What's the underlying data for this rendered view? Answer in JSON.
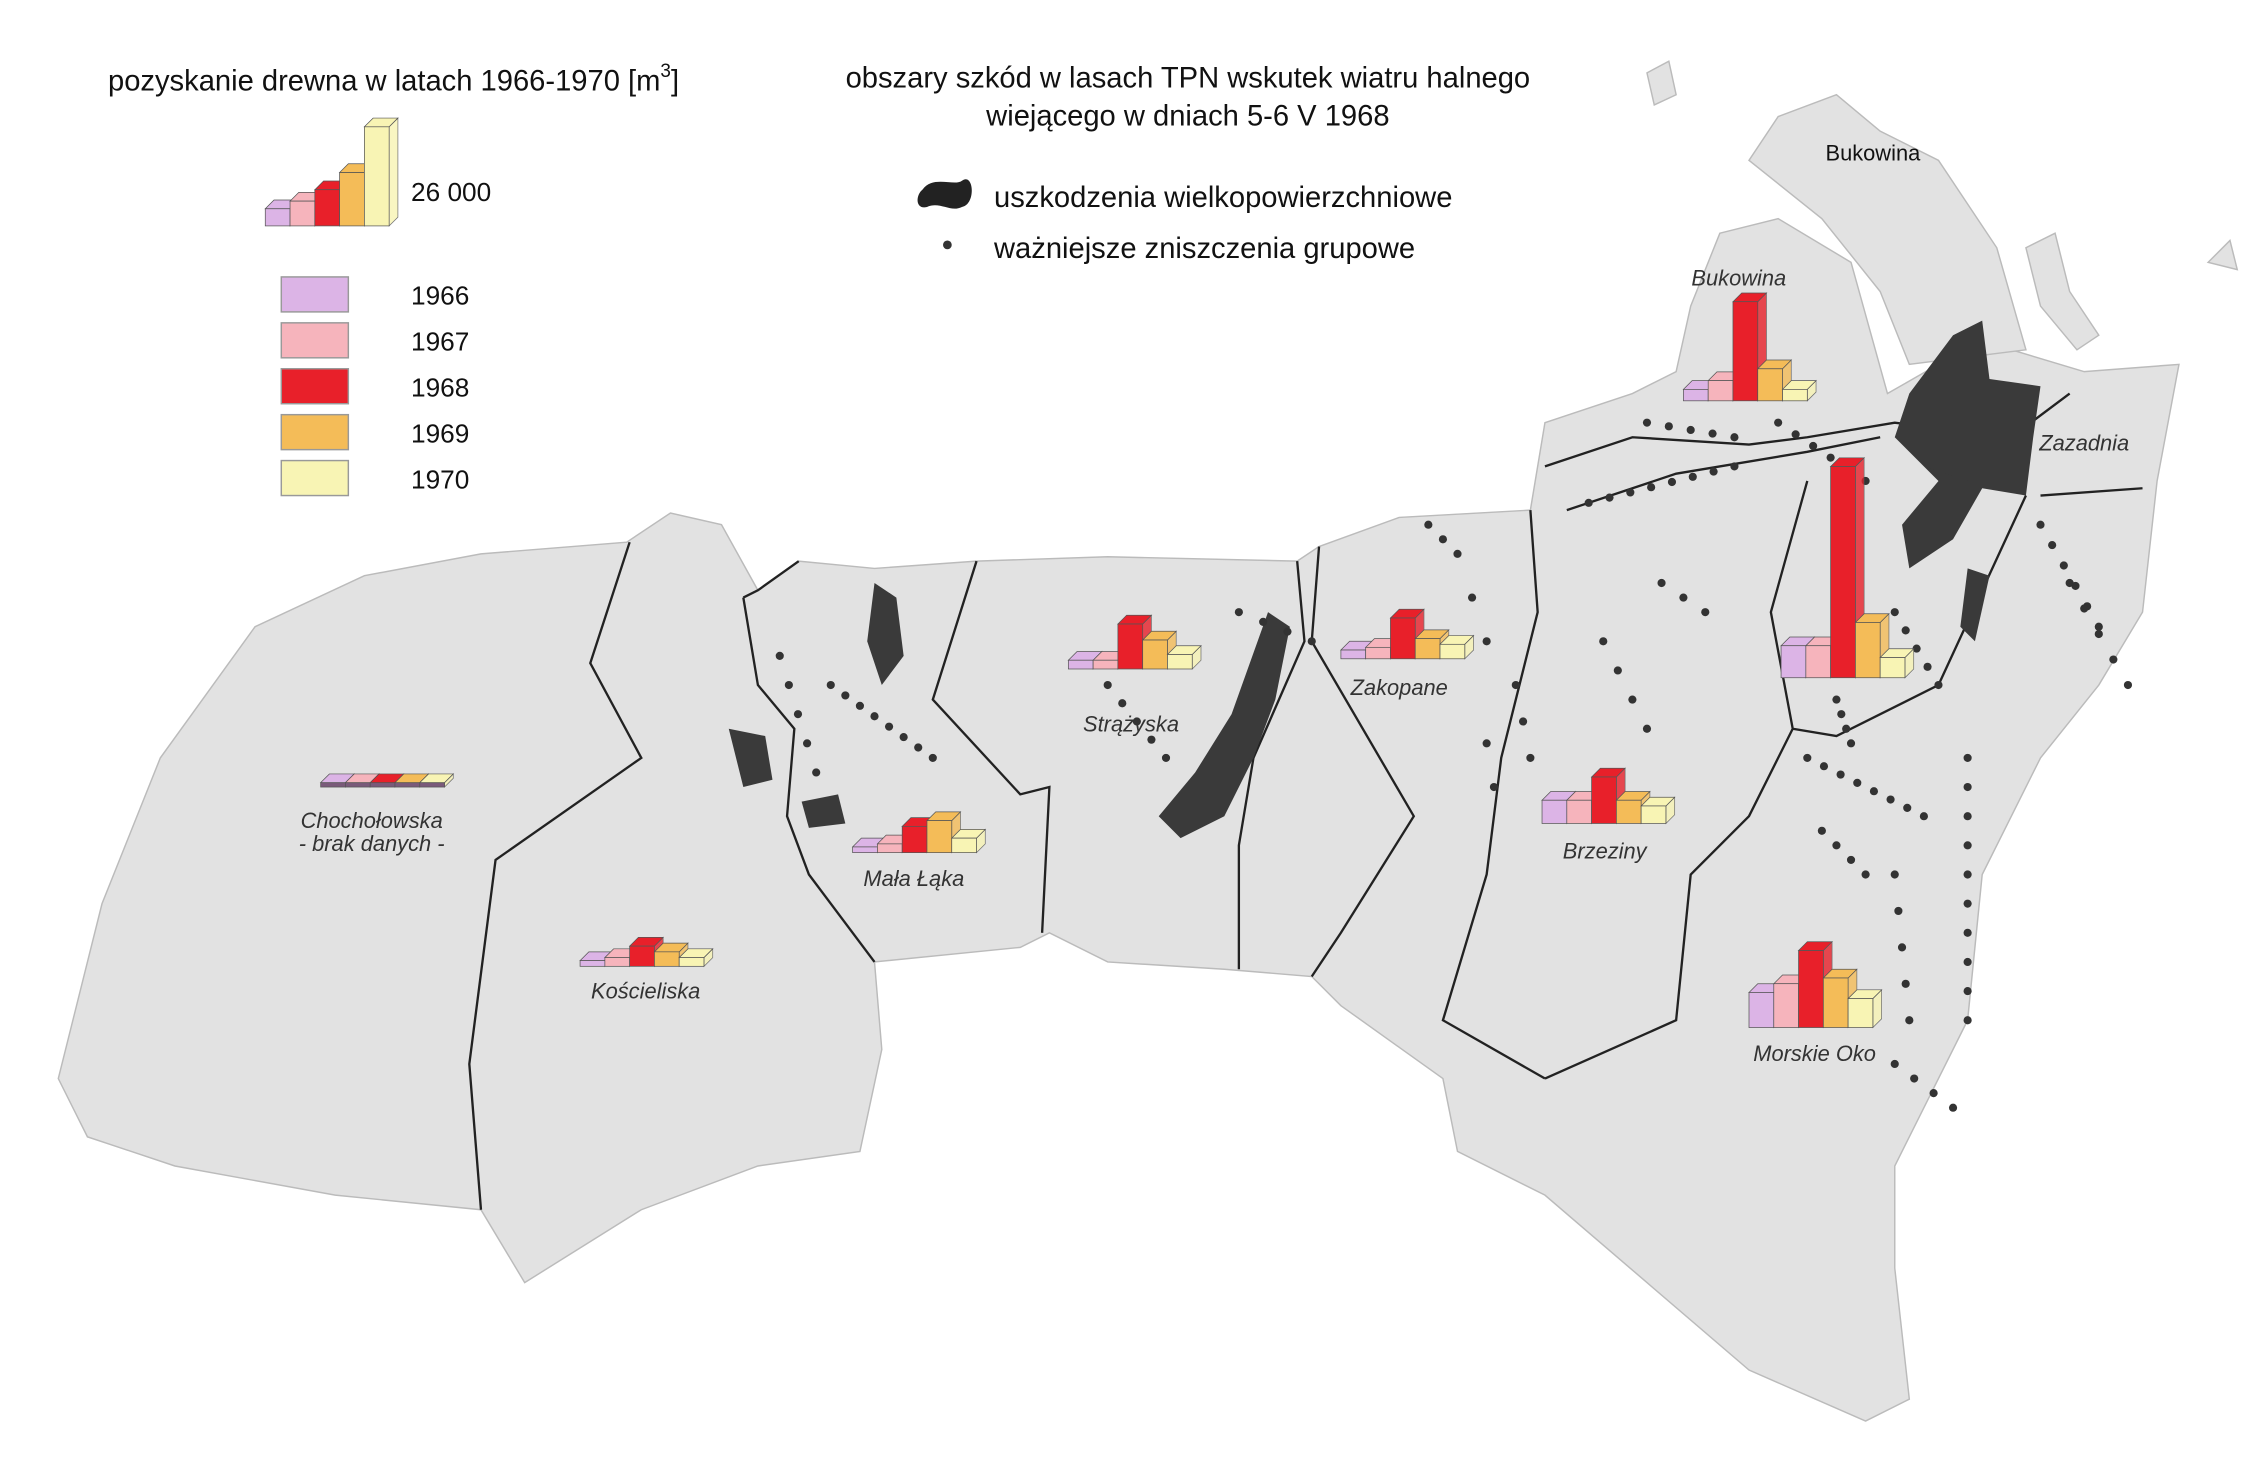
{
  "left_title": {
    "text": "pozyskanie drewna w latach 1966-1970 [m",
    "superscript": "3",
    "close": "]"
  },
  "right_title": [
    "obszary szkód w lasach TPN wskutek wiatru halnego",
    "wiejącego w dniach 5-6 V 1968"
  ],
  "damage_legend": [
    "uszkodzenia wielkopowierzchniowe",
    "ważniejsze zniszczenia grupowe"
  ],
  "scale_bars": {
    "values": [
      4500,
      6500,
      9500,
      14000,
      26000
    ],
    "value_labels": [
      null,
      null,
      null,
      null,
      "26 000"
    ]
  },
  "years": [
    {
      "label": "1966",
      "color": "#dcb4e6"
    },
    {
      "label": "1967",
      "color": "#f6b4bc"
    },
    {
      "label": "1968",
      "color": "#e8202a"
    },
    {
      "label": "1969",
      "color": "#f4bc58"
    },
    {
      "label": "1970",
      "color": "#f8f4b4"
    }
  ],
  "regions": [
    {
      "name": "Chochołowska",
      "note": "- brak danych -",
      "values": [
        null,
        null,
        null,
        null,
        null
      ]
    },
    {
      "name": "Kościeliska",
      "values": [
        1500,
        2300,
        5300,
        3800,
        2300
      ]
    },
    {
      "name": "Mała Łąka",
      "values": [
        1500,
        2300,
        6900,
        8400,
        3800
      ]
    },
    {
      "name": "Strążyska",
      "values": [
        2300,
        2300,
        11800,
        7600,
        3800
      ]
    },
    {
      "name": "Zakopane",
      "values": [
        2300,
        3000,
        10700,
        5300,
        3800
      ]
    },
    {
      "name": "Brzeziny",
      "values": [
        6100,
        6100,
        12200,
        6100,
        4600
      ]
    },
    {
      "name": "Bukowina",
      "values": [
        3000,
        5300,
        26000,
        8400,
        3000
      ]
    },
    {
      "name": null,
      "values": [
        8400,
        8400,
        55400,
        14500,
        5300
      ]
    },
    {
      "name": "Morskie Oko",
      "values": [
        9200,
        11500,
        20200,
        13000,
        7600
      ]
    }
  ],
  "place_labels": [
    "Bukowina",
    "Zazadnia"
  ]
}
